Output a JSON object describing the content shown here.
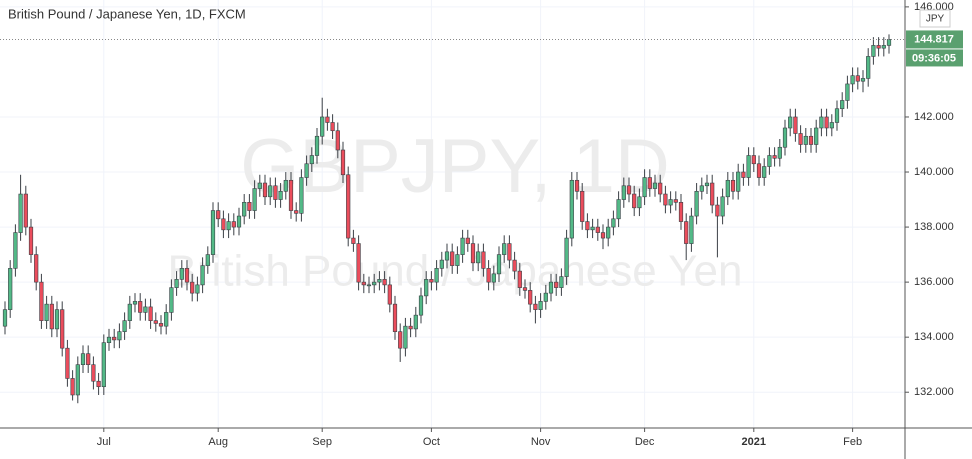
{
  "chart_data": {
    "type": "candlestick",
    "title": "British Pound / Japanese Yen, 1D, FXCM",
    "watermark": "GBPJPY, 1D",
    "watermark_subtitle": "British Pound / Japanese Yen",
    "currency": "JPY",
    "last_price": 144.817,
    "countdown": "09:36:05",
    "up_color": "#53b987",
    "down_color": "#eb4d5c",
    "border_color": "#3a3f45",
    "label_color": "#5aa06f",
    "grid": true,
    "ylim": [
      130.7,
      146.25
    ],
    "yticks": [
      {
        "value": 132,
        "label": "132.000"
      },
      {
        "value": 134,
        "label": "134.000"
      },
      {
        "value": 136,
        "label": "136.000"
      },
      {
        "value": 138,
        "label": "138.000"
      },
      {
        "value": 140,
        "label": "140.000"
      },
      {
        "value": 142,
        "label": "142.000"
      },
      {
        "value": 146,
        "label": "146.000"
      }
    ],
    "categories": [
      null,
      null,
      null,
      null,
      null,
      null,
      null,
      null,
      null,
      null,
      null,
      null,
      null,
      null,
      null,
      null,
      null,
      null,
      null,
      "Jul",
      null,
      null,
      null,
      null,
      null,
      null,
      null,
      null,
      null,
      null,
      null,
      null,
      null,
      null,
      null,
      null,
      null,
      null,
      null,
      null,
      null,
      "Aug",
      null,
      null,
      null,
      null,
      null,
      null,
      null,
      null,
      null,
      null,
      null,
      null,
      null,
      null,
      null,
      null,
      null,
      null,
      null,
      "Sep",
      null,
      null,
      null,
      null,
      null,
      null,
      null,
      null,
      null,
      null,
      null,
      null,
      null,
      null,
      null,
      null,
      null,
      null,
      null,
      null,
      "Oct",
      null,
      null,
      null,
      null,
      null,
      null,
      null,
      null,
      null,
      null,
      null,
      null,
      null,
      null,
      null,
      null,
      null,
      null,
      null,
      null,
      "Nov",
      null,
      null,
      null,
      null,
      null,
      null,
      null,
      null,
      null,
      null,
      null,
      null,
      null,
      null,
      null,
      null,
      null,
      null,
      null,
      "Dec",
      null,
      null,
      null,
      null,
      null,
      null,
      null,
      null,
      null,
      null,
      null,
      null,
      null,
      null,
      null,
      null,
      null,
      null,
      null,
      null,
      "2021",
      null,
      null,
      null,
      null,
      null,
      null,
      null,
      null,
      null,
      null,
      null,
      null,
      null,
      null,
      null,
      null,
      null,
      null,
      "Feb",
      null,
      null,
      null,
      null,
      null,
      null,
      null
    ],
    "open": [
      134.4,
      135.0,
      136.5,
      137.8,
      139.2,
      138.0,
      137.0,
      136.0,
      134.6,
      135.2,
      134.3,
      135.0,
      133.6,
      132.5,
      131.9,
      133.0,
      133.4,
      133.0,
      132.4,
      132.2,
      133.8,
      134.0,
      133.9,
      134.2,
      134.6,
      135.2,
      135.3,
      134.9,
      135.1,
      134.6,
      134.5,
      134.4,
      134.9,
      135.8,
      136.1,
      136.5,
      136.0,
      135.6,
      135.9,
      136.6,
      137.0,
      138.6,
      138.3,
      137.9,
      138.2,
      138.0,
      138.4,
      138.9,
      138.6,
      139.4,
      139.6,
      139.1,
      139.5,
      139.0,
      139.3,
      139.7,
      138.6,
      138.5,
      139.8,
      140.3,
      140.6,
      141.3,
      142.0,
      141.8,
      141.5,
      140.8,
      139.9,
      137.6,
      137.4,
      136.0,
      135.9,
      135.9,
      136.0,
      136.1,
      135.9,
      135.2,
      134.2,
      133.6,
      134.4,
      134.3,
      134.8,
      135.5,
      136.1,
      136.0,
      136.5,
      136.8,
      137.1,
      136.6,
      137.0,
      137.6,
      137.4,
      136.7,
      137.1,
      136.5,
      136.0,
      136.3,
      137.0,
      137.4,
      136.8,
      136.4,
      135.8,
      135.7,
      135.2,
      135.0,
      135.3,
      135.6,
      136.0,
      135.8,
      136.2,
      137.6,
      139.7,
      139.3,
      138.2,
      137.9,
      138.0,
      137.8,
      137.6,
      138.0,
      138.3,
      139.0,
      139.5,
      139.2,
      138.7,
      139.1,
      139.8,
      139.4,
      139.6,
      139.2,
      138.8,
      139.0,
      138.9,
      138.2,
      137.4,
      138.4,
      139.3,
      139.5,
      139.6,
      138.8,
      138.4,
      139.1,
      139.7,
      139.3,
      140.0,
      139.8,
      140.6,
      140.3,
      139.8,
      140.2,
      140.6,
      140.5,
      140.9,
      141.6,
      142.0,
      141.4,
      141.0,
      141.3,
      141.0,
      141.6,
      142.0,
      141.6,
      141.8,
      142.3,
      142.6,
      143.2,
      143.5,
      143.3,
      143.4,
      144.2,
      144.6,
      144.5,
      144.6
    ],
    "high": [
      135.3,
      136.8,
      138.1,
      139.9,
      139.5,
      138.3,
      137.3,
      136.3,
      135.5,
      135.5,
      135.3,
      135.3,
      133.9,
      132.8,
      133.3,
      133.7,
      133.7,
      133.3,
      132.7,
      134.1,
      134.3,
      134.3,
      134.5,
      134.9,
      135.5,
      135.6,
      135.6,
      135.4,
      135.4,
      134.9,
      134.8,
      135.2,
      136.1,
      136.4,
      136.8,
      136.8,
      136.3,
      136.2,
      136.9,
      137.3,
      138.9,
      138.9,
      138.6,
      138.5,
      138.5,
      138.7,
      139.2,
      139.2,
      139.7,
      139.9,
      139.9,
      139.8,
      139.8,
      139.6,
      140.0,
      140.0,
      138.9,
      140.1,
      140.6,
      140.9,
      141.6,
      142.7,
      142.3,
      142.1,
      141.8,
      141.1,
      140.2,
      137.9,
      137.7,
      136.3,
      136.2,
      136.3,
      136.4,
      136.4,
      136.2,
      135.5,
      134.5,
      134.7,
      134.7,
      135.1,
      135.8,
      136.4,
      136.4,
      136.8,
      137.1,
      137.4,
      137.4,
      137.3,
      137.9,
      137.9,
      137.7,
      137.4,
      137.4,
      136.8,
      136.6,
      137.3,
      137.7,
      137.7,
      137.1,
      136.7,
      136.1,
      136.0,
      135.5,
      135.6,
      135.9,
      136.3,
      136.3,
      136.5,
      137.9,
      140.0,
      140.0,
      139.6,
      138.5,
      138.3,
      138.3,
      138.1,
      138.3,
      138.6,
      139.3,
      139.8,
      139.8,
      139.5,
      139.4,
      140.1,
      140.1,
      139.9,
      139.9,
      139.5,
      139.3,
      139.3,
      139.2,
      138.5,
      138.7,
      139.6,
      139.8,
      139.9,
      139.9,
      139.1,
      139.4,
      140.0,
      140.0,
      140.3,
      140.3,
      140.9,
      140.9,
      140.6,
      140.5,
      140.9,
      140.9,
      141.2,
      141.9,
      142.3,
      142.3,
      141.7,
      141.6,
      141.6,
      141.9,
      142.3,
      142.3,
      142.1,
      142.6,
      142.9,
      143.5,
      143.8,
      143.8,
      143.7,
      144.5,
      144.9,
      144.9,
      144.9,
      145.0
    ],
    "low": [
      134.1,
      134.7,
      136.2,
      137.5,
      137.7,
      136.7,
      135.7,
      134.3,
      134.3,
      134.0,
      134.0,
      133.3,
      132.2,
      131.7,
      131.6,
      132.7,
      132.7,
      132.1,
      131.9,
      131.9,
      133.5,
      133.6,
      133.6,
      133.9,
      134.3,
      134.9,
      134.6,
      134.6,
      134.3,
      134.2,
      134.1,
      134.1,
      134.6,
      135.5,
      135.8,
      135.7,
      135.3,
      135.3,
      135.6,
      136.3,
      136.7,
      138.0,
      137.6,
      137.6,
      137.7,
      137.7,
      138.1,
      138.3,
      138.3,
      139.1,
      138.8,
      138.8,
      138.7,
      138.7,
      139.0,
      138.3,
      138.2,
      138.2,
      139.5,
      140.0,
      140.3,
      141.0,
      141.5,
      141.2,
      140.5,
      139.6,
      137.3,
      137.1,
      135.7,
      135.6,
      135.6,
      135.6,
      135.7,
      135.6,
      134.9,
      133.9,
      133.1,
      133.3,
      134.0,
      134.0,
      134.5,
      135.2,
      135.7,
      135.7,
      136.2,
      136.5,
      136.3,
      136.3,
      136.7,
      137.1,
      136.4,
      136.4,
      136.2,
      135.7,
      135.7,
      136.0,
      136.7,
      136.5,
      136.1,
      135.5,
      135.4,
      134.9,
      134.5,
      134.7,
      135.0,
      135.3,
      135.5,
      135.5,
      135.9,
      137.3,
      139.0,
      137.9,
      137.6,
      137.6,
      137.5,
      137.2,
      137.3,
      137.7,
      138.0,
      138.7,
      138.9,
      138.4,
      138.4,
      138.8,
      139.1,
      139.1,
      138.9,
      138.5,
      138.5,
      138.6,
      137.9,
      136.8,
      137.1,
      138.1,
      139.0,
      139.2,
      138.5,
      136.9,
      138.1,
      138.8,
      139.0,
      139.0,
      139.5,
      139.5,
      140.0,
      139.5,
      139.5,
      139.9,
      140.2,
      140.2,
      140.6,
      141.3,
      141.1,
      140.7,
      140.7,
      140.7,
      140.7,
      141.3,
      141.3,
      141.3,
      141.5,
      142.0,
      142.3,
      142.9,
      143.0,
      142.9,
      143.1,
      143.9,
      144.2,
      144.2,
      144.3
    ],
    "close": [
      135.0,
      136.5,
      137.8,
      139.2,
      138.0,
      137.0,
      136.0,
      134.6,
      135.2,
      134.3,
      135.0,
      133.6,
      132.5,
      131.9,
      133.0,
      133.4,
      133.0,
      132.4,
      132.2,
      133.8,
      134.0,
      133.9,
      134.2,
      134.6,
      135.2,
      135.3,
      134.9,
      135.1,
      134.6,
      134.5,
      134.4,
      134.9,
      135.8,
      136.1,
      136.5,
      136.0,
      135.6,
      135.9,
      136.6,
      137.0,
      138.6,
      138.3,
      137.9,
      138.2,
      138.0,
      138.4,
      138.9,
      138.6,
      139.4,
      139.6,
      139.1,
      139.5,
      139.0,
      139.3,
      139.7,
      138.6,
      138.5,
      139.8,
      140.3,
      140.6,
      141.3,
      142.0,
      141.8,
      141.5,
      140.8,
      139.9,
      137.6,
      137.4,
      136.0,
      135.9,
      135.9,
      136.0,
      136.1,
      135.9,
      135.2,
      134.2,
      133.6,
      134.4,
      134.3,
      134.8,
      135.5,
      136.1,
      136.0,
      136.5,
      136.8,
      137.1,
      136.6,
      137.0,
      137.6,
      137.4,
      136.7,
      137.1,
      136.5,
      136.0,
      136.3,
      137.0,
      137.4,
      136.8,
      136.4,
      135.8,
      135.7,
      135.2,
      135.0,
      135.3,
      135.6,
      136.0,
      135.8,
      136.2,
      137.6,
      139.7,
      139.3,
      138.2,
      137.9,
      138.0,
      137.8,
      137.6,
      138.0,
      138.3,
      139.0,
      139.5,
      139.2,
      138.7,
      139.1,
      139.8,
      139.4,
      139.6,
      139.2,
      138.8,
      139.0,
      138.9,
      138.2,
      137.4,
      138.4,
      139.3,
      139.5,
      139.6,
      138.8,
      138.4,
      139.1,
      139.7,
      139.3,
      140.0,
      139.8,
      140.6,
      140.3,
      139.8,
      140.2,
      140.6,
      140.5,
      140.9,
      141.6,
      142.0,
      141.4,
      141.0,
      141.3,
      141.0,
      141.6,
      142.0,
      141.6,
      141.8,
      142.3,
      142.6,
      143.2,
      143.5,
      143.3,
      143.4,
      144.2,
      144.6,
      144.5,
      144.6,
      144.817
    ]
  }
}
